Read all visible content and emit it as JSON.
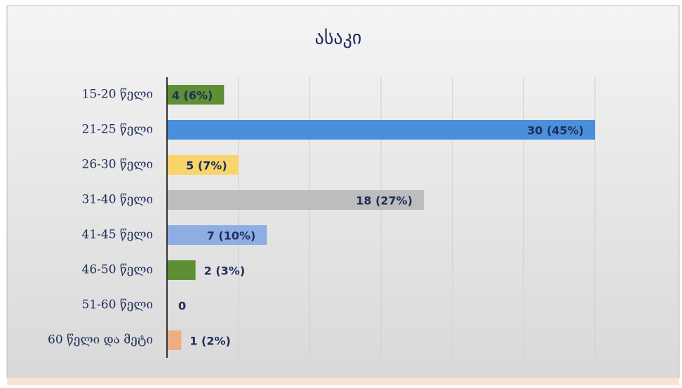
{
  "chart_data": {
    "type": "bar",
    "orientation": "horizontal",
    "title": "ასაკი",
    "categories": [
      "15-20 წელი",
      "21-25 წელი",
      "26-30 წელი",
      "31-40 წელი",
      "41-45 წელი",
      "46-50 წელი",
      "51-60 წელი",
      "60 წელი და მეტი"
    ],
    "values": [
      4,
      30,
      5,
      18,
      7,
      2,
      0,
      1
    ],
    "value_labels": [
      "4 (6%)",
      "30 (45%)",
      "5 (7%)",
      "18 (27%)",
      "7 (10%)",
      "2 (3%)",
      "0",
      "1 (2%)"
    ],
    "colors": [
      "#5e8f35",
      "#4a8fdb",
      "#f7d56a",
      "#bdbdbd",
      "#8eaee3",
      "#5e8f35",
      "#8eaee3",
      "#f0ad84"
    ],
    "xlim": [
      0,
      30
    ],
    "xticks": [
      0,
      5,
      10,
      15,
      20,
      25,
      30
    ],
    "grid": true
  }
}
